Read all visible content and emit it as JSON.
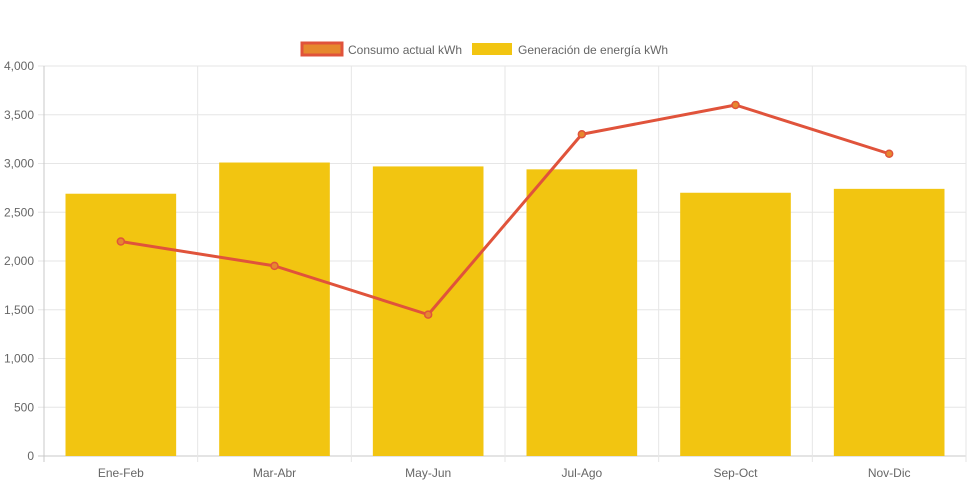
{
  "chart_data": {
    "type": "bar",
    "categories": [
      "Ene-Feb",
      "Mar-Abr",
      "May-Jun",
      "Jul-Ago",
      "Sep-Oct",
      "Nov-Dic"
    ],
    "series": [
      {
        "name": "Consumo actual kWh",
        "type": "line",
        "values": [
          2200,
          1950,
          1450,
          3300,
          3600,
          3100
        ],
        "color": "#e0533b",
        "point_color": "#e6882e"
      },
      {
        "name": "Generación de energía kWh",
        "type": "bar",
        "values": [
          2690,
          3010,
          2970,
          2940,
          2700,
          2740
        ],
        "color": "#f2c511"
      }
    ],
    "y_ticks": [
      "0",
      "500",
      "1,000",
      "1,500",
      "2,000",
      "2,500",
      "3,000",
      "3,500",
      "4,000"
    ],
    "ylim": [
      0,
      4000
    ],
    "grid": true,
    "legend_position": "top-center"
  }
}
